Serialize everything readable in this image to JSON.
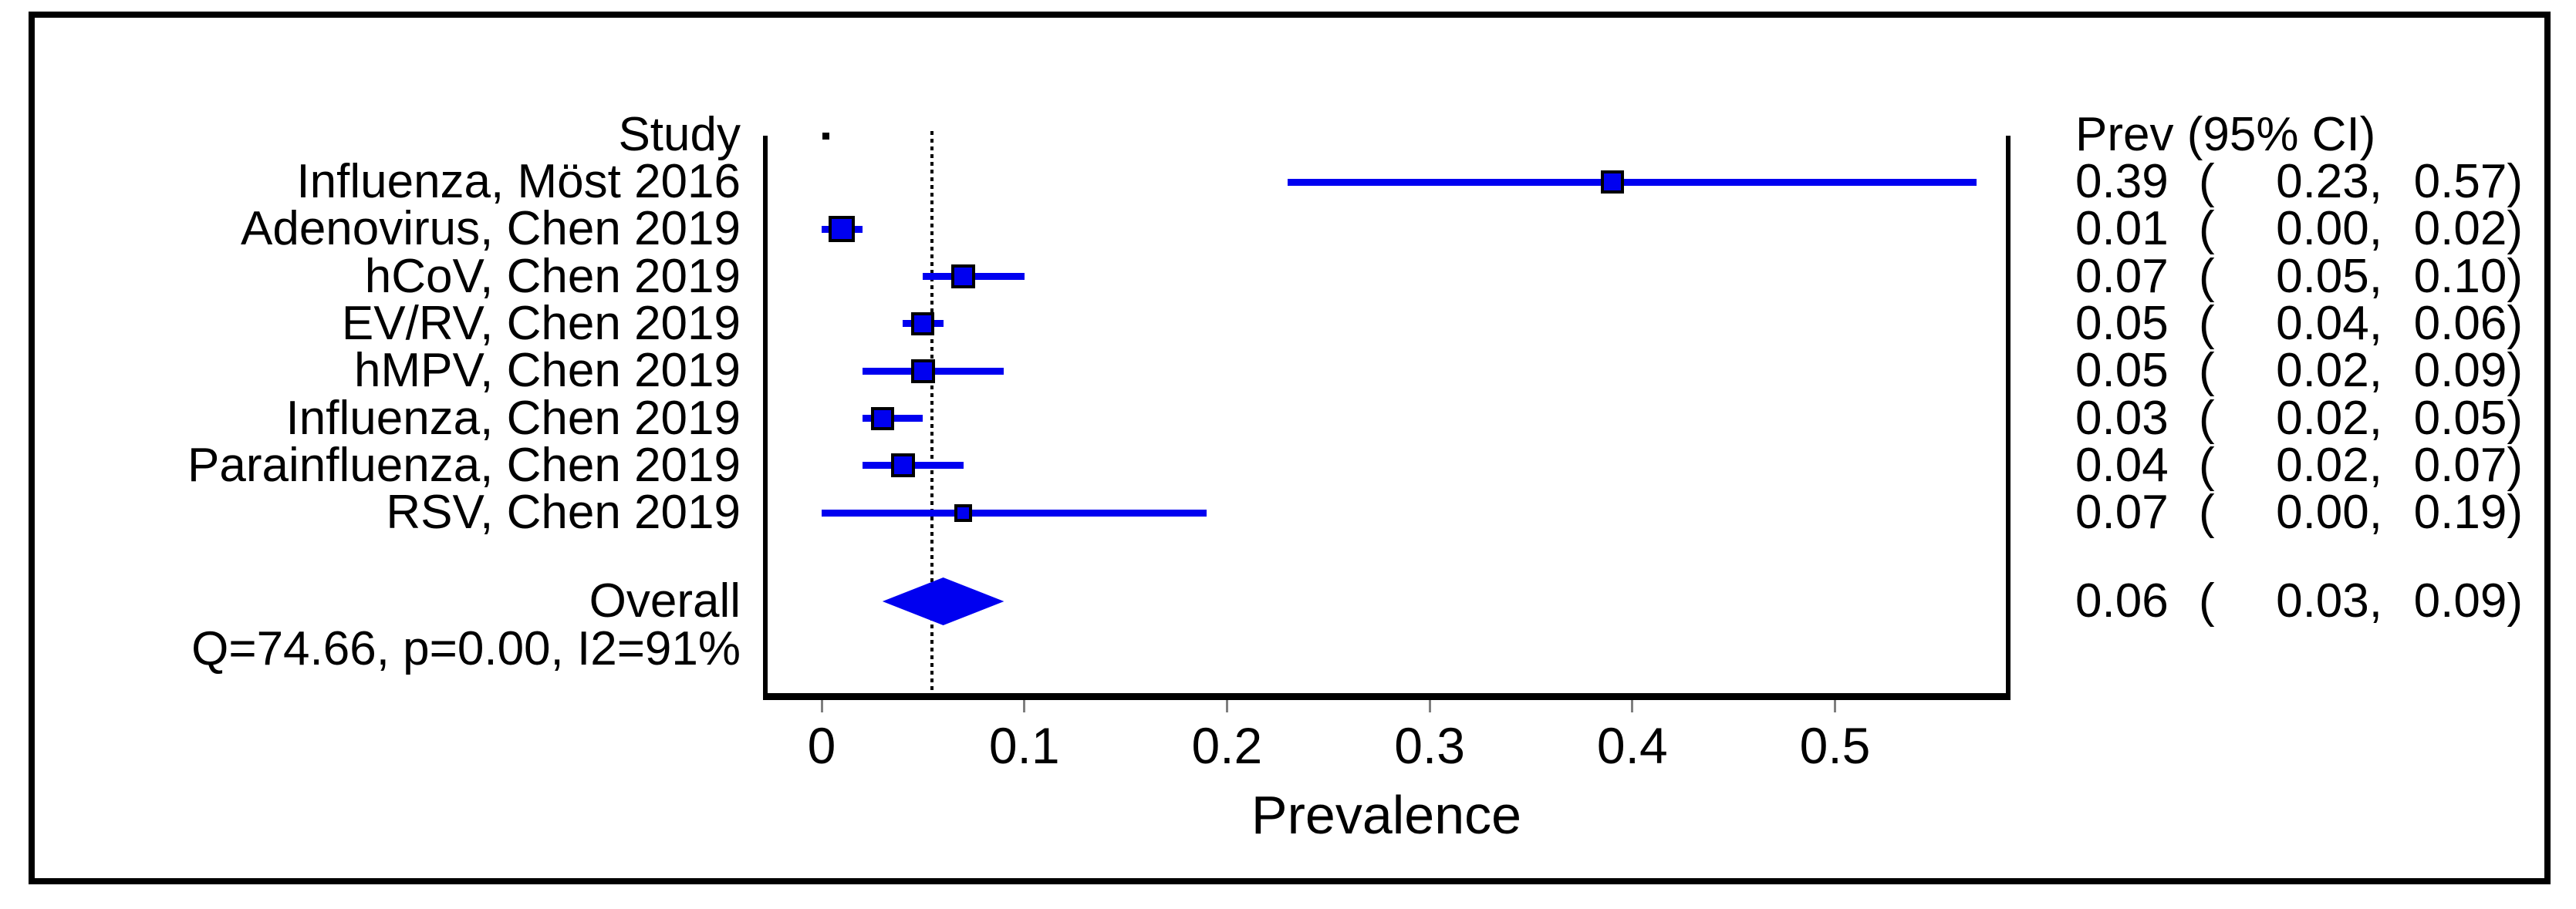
{
  "chart_data": {
    "type": "forest",
    "xlabel": "Prevalence",
    "x_ticks": [
      "0",
      "0.1",
      "0.2",
      "0.3",
      "0.4",
      "0.5"
    ],
    "x_tick_values": [
      0,
      0.1,
      0.2,
      0.3,
      0.4,
      0.5
    ],
    "xlim": [
      -0.03,
      0.59
    ],
    "grid": "off",
    "legend": "none",
    "study_col_header": "Study",
    "effect_col_header": "Prev (95% CI)",
    "reference_line_value": 0.055,
    "studies": [
      {
        "label": "Influenza, Möst 2016",
        "prev": 0.39,
        "lo": 0.23,
        "hi": 0.57,
        "marker_size": 30
      },
      {
        "label": "Adenovirus, Chen 2019",
        "prev": 0.01,
        "lo": 0.0,
        "hi": 0.02,
        "marker_size": 34
      },
      {
        "label": "hCoV, Chen 2019",
        "prev": 0.07,
        "lo": 0.05,
        "hi": 0.1,
        "marker_size": 31
      },
      {
        "label": "EV/RV, Chen 2019",
        "prev": 0.05,
        "lo": 0.04,
        "hi": 0.06,
        "marker_size": 30
      },
      {
        "label": "hMPV, Chen 2019",
        "prev": 0.05,
        "lo": 0.02,
        "hi": 0.09,
        "marker_size": 31
      },
      {
        "label": "Influenza, Chen 2019",
        "prev": 0.03,
        "lo": 0.02,
        "hi": 0.05,
        "marker_size": 30
      },
      {
        "label": "Parainfluenza, Chen 2019",
        "prev": 0.04,
        "lo": 0.02,
        "hi": 0.07,
        "marker_size": 31
      },
      {
        "label": "RSV, Chen 2019",
        "prev": 0.07,
        "lo": 0.0,
        "hi": 0.19,
        "marker_size": 23
      }
    ],
    "overall": {
      "label": "Overall",
      "prev": 0.06,
      "lo": 0.03,
      "hi": 0.09
    },
    "heterogeneity_text": "Q=74.66, p=0.00, I2=91%",
    "colors": {
      "marker": "#0000f0",
      "marker_outline": "#000000",
      "axis": "#000000",
      "tick": "#7f7f7f",
      "text": "#000000",
      "background": "#ffffff"
    }
  }
}
